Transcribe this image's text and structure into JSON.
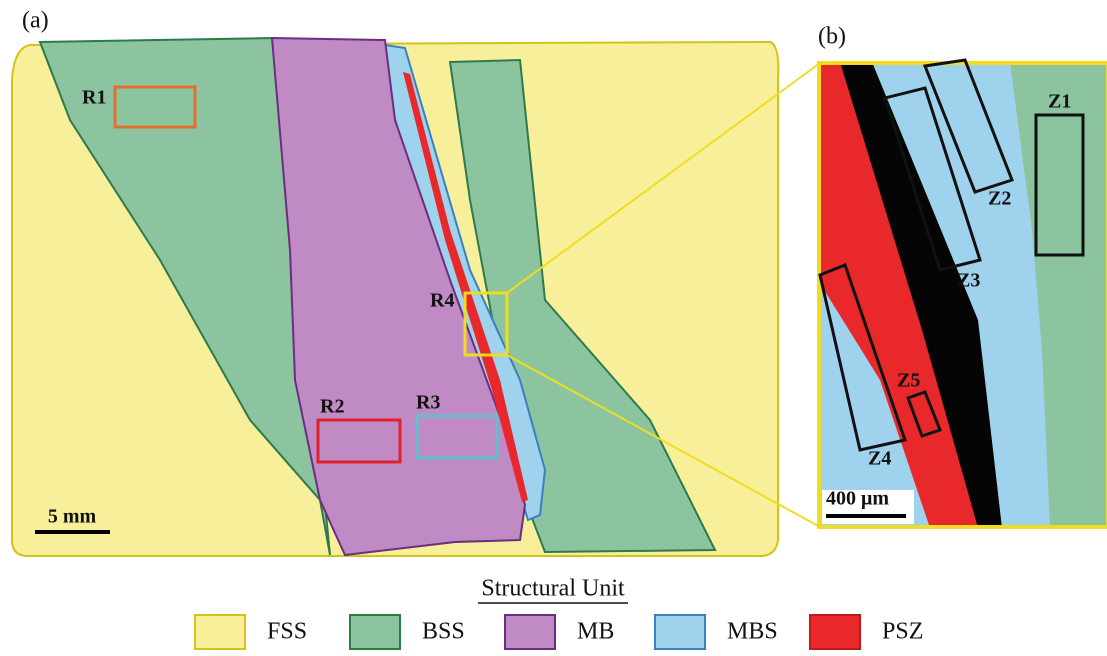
{
  "panels": {
    "a": "(a)",
    "b": "(b)"
  },
  "regions": [
    "R1",
    "R2",
    "R3",
    "R4"
  ],
  "zones": [
    "Z1",
    "Z2",
    "Z3",
    "Z4",
    "Z5"
  ],
  "scale_bars": {
    "a": "5 mm",
    "b": "400 μm"
  },
  "legend": {
    "title": "Structural Unit",
    "items": [
      {
        "label": "FSS",
        "color": "#f7ef9a"
      },
      {
        "label": "BSS",
        "color": "#8cc4a0"
      },
      {
        "label": "MB",
        "color": "#c08ac4"
      },
      {
        "label": "MBS",
        "color": "#9fd2ec"
      },
      {
        "label": "PSZ",
        "color": "#e8282a"
      }
    ]
  }
}
